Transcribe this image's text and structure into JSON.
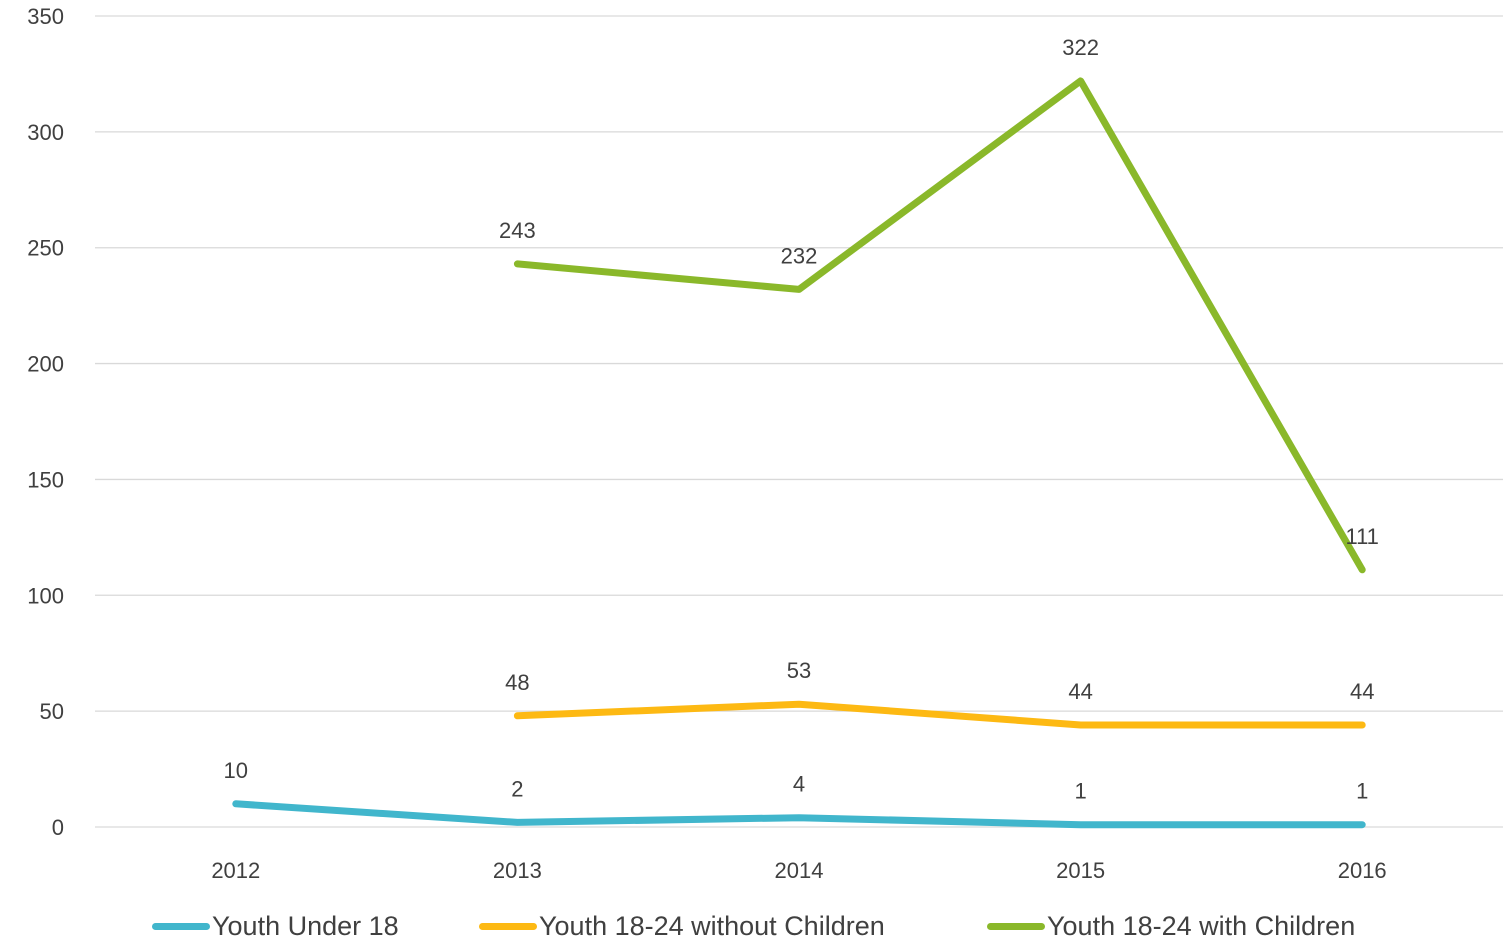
{
  "chart_data": {
    "type": "line",
    "title": "",
    "xlabel": "",
    "ylabel": "",
    "categories": [
      "2012",
      "2013",
      "2014",
      "2015",
      "2016"
    ],
    "ylim": [
      0,
      350
    ],
    "yticks": [
      "0",
      "50",
      "100",
      "150",
      "200",
      "250",
      "300",
      "350"
    ],
    "grid": true,
    "legend_position": "bottom",
    "series": [
      {
        "name": "Youth Under 18",
        "color": "#41B6CC",
        "values": [
          10,
          2,
          4,
          1,
          1
        ]
      },
      {
        "name": "Youth 18-24 without Children",
        "color": "#FDB913",
        "values": [
          null,
          48,
          53,
          44,
          44
        ]
      },
      {
        "name": "Youth 18-24 with Children",
        "color": "#8AB82A",
        "values": [
          null,
          243,
          232,
          322,
          111
        ]
      }
    ]
  }
}
